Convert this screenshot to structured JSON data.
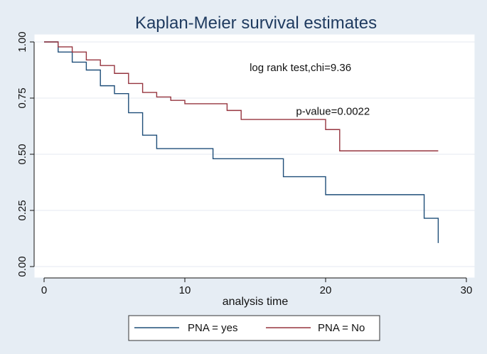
{
  "chart_data": {
    "type": "line",
    "title": "Kaplan-Meier survival estimates",
    "xlabel": "analysis time",
    "ylabel": "",
    "xlim": [
      0,
      30
    ],
    "ylim": [
      0,
      1
    ],
    "xticks": [
      0,
      10,
      20,
      30
    ],
    "xtick_labels": [
      "0",
      "10",
      "20",
      "30"
    ],
    "yticks": [
      0,
      0.25,
      0.5,
      0.75,
      1.0
    ],
    "ytick_labels": [
      "0.00",
      "0.25",
      "0.50",
      "0.75",
      "1.00"
    ],
    "grid": "horizontal",
    "legend_position": "bottom",
    "annotations": [
      {
        "text": "log rank test,chi=9.36",
        "x": 14.6,
        "y": 0.87
      },
      {
        "text": "p-value=0.0022",
        "x": 17.9,
        "y": 0.675
      }
    ],
    "series": [
      {
        "name": "PNA = yes",
        "color": "#1f4e79",
        "step": true,
        "x": [
          0,
          1,
          2,
          3,
          4,
          5,
          6,
          7,
          8,
          12,
          17,
          20,
          27,
          28
        ],
        "y": [
          1.0,
          0.955,
          0.91,
          0.875,
          0.805,
          0.77,
          0.685,
          0.585,
          0.525,
          0.48,
          0.4,
          0.32,
          0.215,
          0.105
        ]
      },
      {
        "name": "PNA = No",
        "color": "#96353f",
        "step": true,
        "x": [
          0,
          1,
          2,
          3,
          4,
          5,
          6,
          7,
          8,
          9,
          10,
          13,
          14,
          20,
          21,
          28
        ],
        "y": [
          1.0,
          0.978,
          0.955,
          0.92,
          0.895,
          0.86,
          0.815,
          0.775,
          0.755,
          0.74,
          0.725,
          0.695,
          0.655,
          0.61,
          0.515,
          0.515
        ]
      }
    ]
  }
}
